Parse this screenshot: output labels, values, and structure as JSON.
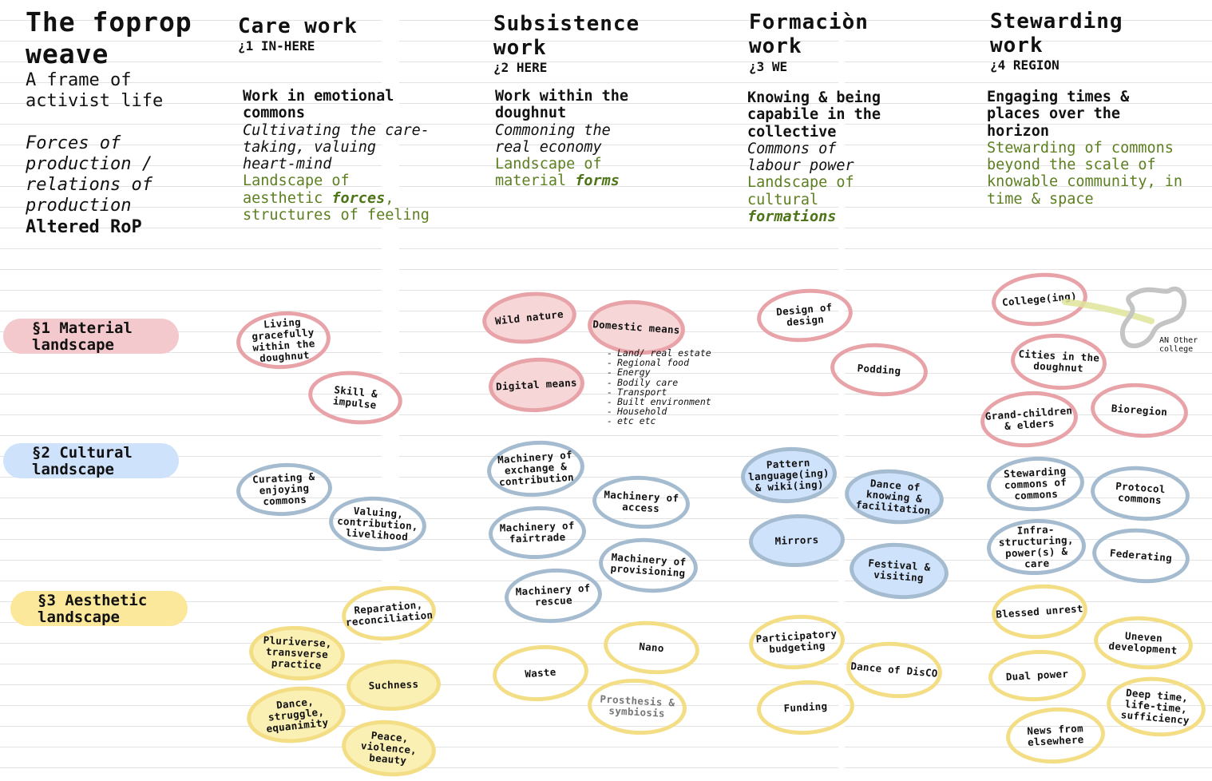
{
  "header": {
    "title": "The  foprop weave",
    "subtitle": "A frame of activist life",
    "forces": "Forces of production / relations of production",
    "altered": "Altered RoP"
  },
  "columns": [
    {
      "title": "Care work",
      "num": "¿1 IN-HERE",
      "desc_bold": "Work in emotional commons",
      "desc_italic": "Cultivating the care-taking, valuing heart-mind",
      "desc_green_pre": "Landscape of aesthetic ",
      "desc_green_emph": "forces",
      "desc_green_post": ", structures of feeling"
    },
    {
      "title": "Subsistence work",
      "num": "¿2 HERE",
      "desc_bold": "Work within the doughnut",
      "desc_italic": "Commoning the real economy",
      "desc_green_pre": "Landscape of material ",
      "desc_green_emph": "forms",
      "desc_green_post": ""
    },
    {
      "title": "Formaciòn work",
      "num": "¿3 WE",
      "desc_bold": "Knowing & being capabile in the collective",
      "desc_italic": "Commons of labour power",
      "desc_green_pre": "Landscape of cultural ",
      "desc_green_emph": "formations",
      "desc_green_post": ""
    },
    {
      "title": "Stewarding work",
      "num": "¿4 REGION",
      "desc_bold": "Engaging times & places over the horizon",
      "desc_italic": "",
      "desc_green_pre": "Stewarding of commons beyond the scale of knowable community, in time & space",
      "desc_green_emph": "",
      "desc_green_post": ""
    }
  ],
  "rows": [
    {
      "label": "§1 Material landscape",
      "color": "#f4c9cd"
    },
    {
      "label": "§2 Cultural landscape",
      "color": "#cfe2fb"
    },
    {
      "label": "§3 Aesthetic landscape",
      "color": "#fbe89a"
    }
  ],
  "nodes": {
    "living": "Living gracefully within the doughnut",
    "skill": "Skill & impulse",
    "curating": "Curating & enjoying commons",
    "valuing": "Valuing, contribution, livelihood",
    "reparation": "Reparation, reconciliation",
    "pluriverse": "Pluriverse, transverse practice",
    "suchness": "Suchness",
    "dance_struggle": "Dance, struggle, equanimity",
    "peace": "Peace, violence, beauty",
    "wild": "Wild nature",
    "domestic": "Domestic means",
    "digital": "Digital means",
    "exchange": "Machinery of exchange & contribution",
    "access": "Machinery of access",
    "fairtrade": "Machinery of fairtrade",
    "provisioning": "Machinery of provisioning",
    "rescue": "Machinery of rescue",
    "nano": "Nano",
    "waste": "Waste",
    "prosthesis": "Prosthesis & symbiosis",
    "design": "Design of design",
    "podding": "Podding",
    "pattern": "Pattern language(ing) & wiki(ing)",
    "dance_knowing": "Dance of knowing & facilitation",
    "mirrors": "Mirrors",
    "festival": "Festival & visiting",
    "participatory": "Participatory budgeting",
    "disco": "Dance of DisCO",
    "funding": "Funding",
    "college": "College(ing)",
    "an_other": "AN Other college",
    "cities": "Cities in the doughnut",
    "grand": "Grand-children & elders",
    "bioregion": "Bioregion",
    "stewarding_commons": "Stewarding commons of commons",
    "protocol": "Protocol commons",
    "infra": "Infra-structuring, power(s) & care",
    "federating": "Federating",
    "blessed": "Blessed unrest",
    "uneven": "Uneven development",
    "dual": "Dual power",
    "deep": "Deep time, life-time, sufficiency",
    "news": "News from elsewhere"
  },
  "domestic_means_list": [
    "Land/ real estate",
    "Regional food",
    "Energy",
    "Bodily care",
    "Transport",
    "Built environment",
    "Household",
    "etc etc"
  ]
}
